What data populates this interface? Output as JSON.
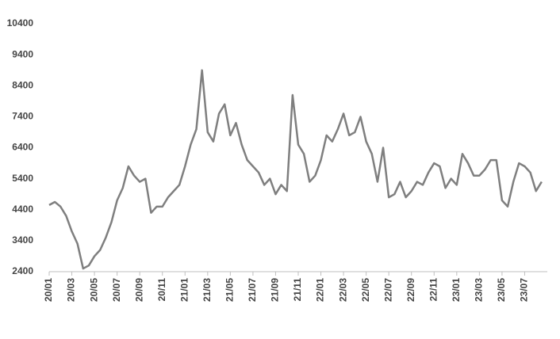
{
  "chart_data": {
    "type": "line",
    "categories": [
      "20/01",
      null,
      null,
      null,
      "20/03",
      null,
      null,
      null,
      "20/05",
      null,
      null,
      null,
      "20/07",
      null,
      null,
      null,
      "20/09",
      null,
      null,
      null,
      "20/11",
      null,
      null,
      null,
      "21/01",
      null,
      null,
      null,
      "21/03",
      null,
      null,
      null,
      "21/05",
      null,
      null,
      null,
      "21/07",
      null,
      null,
      null,
      "21/09",
      null,
      null,
      null,
      "21/11",
      null,
      null,
      null,
      "22/01",
      null,
      null,
      null,
      "22/03",
      null,
      null,
      null,
      "22/05",
      null,
      null,
      null,
      "22/07",
      null,
      null,
      null,
      "22/09",
      null,
      null,
      null,
      "22/11",
      null,
      null,
      null,
      "23/01",
      null,
      null,
      null,
      "23/03",
      null,
      null,
      null,
      "23/05",
      null,
      null,
      null,
      "23/07",
      null,
      null,
      null
    ],
    "series": [
      {
        "color": "#7f7f7f",
        "values": [
          4550,
          4650,
          4500,
          4200,
          3700,
          3300,
          2500,
          2600,
          2900,
          3100,
          3500,
          4000,
          4700,
          5100,
          5800,
          5500,
          5300,
          5400,
          4300,
          4500,
          4500,
          4800,
          5000,
          5200,
          5800,
          6500,
          7000,
          8900,
          6900,
          6600,
          7500,
          7800,
          6800,
          7200,
          6500,
          6000,
          5800,
          5600,
          5200,
          5400,
          4900,
          5200,
          5000,
          8100,
          6500,
          6200,
          5300,
          5500,
          6000,
          6800,
          6600,
          7000,
          7500,
          6800,
          6900,
          7400,
          6600,
          6200,
          5300,
          6400,
          4800,
          4900,
          5300,
          4800,
          5000,
          5300,
          5200,
          5600,
          5900,
          5800,
          5100,
          5400,
          5200,
          6200,
          5900,
          5500,
          5500,
          5700,
          6000,
          6000,
          4700,
          4500,
          5300,
          5900,
          5800,
          5600,
          5000,
          5300
        ]
      }
    ],
    "ylim": [
      2400,
      10400
    ],
    "yticks": [
      2400,
      3400,
      4400,
      5400,
      6400,
      7400,
      8400,
      9400,
      10400
    ]
  }
}
